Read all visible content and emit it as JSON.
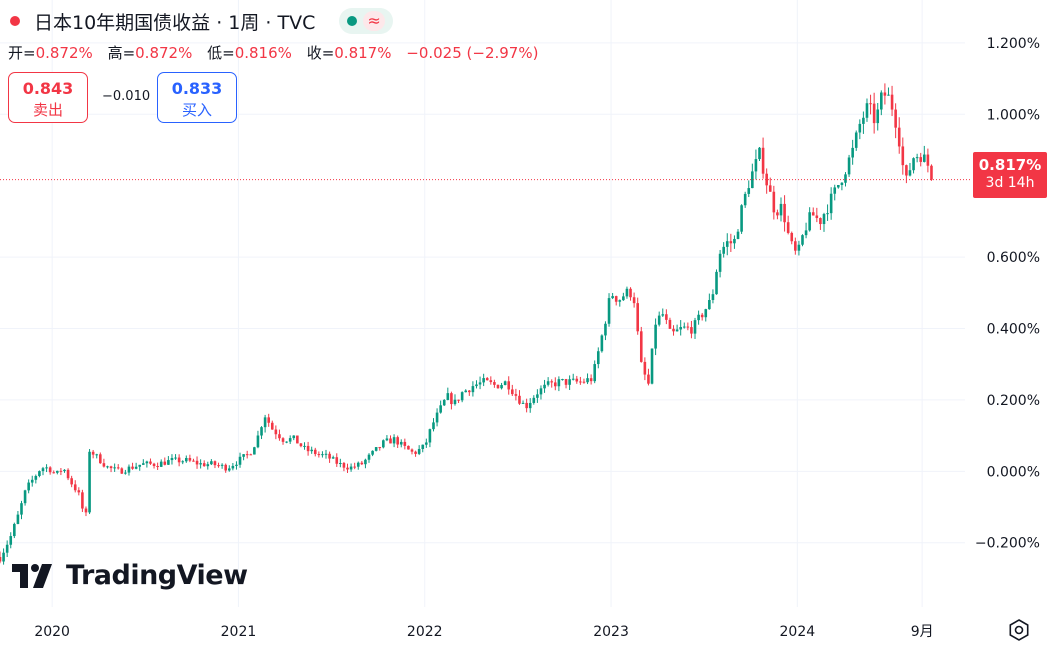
{
  "header": {
    "title": "日本10年期国债收益 · 1周 · TVC",
    "live_indicator_color": "#f23645",
    "pill_icons": [
      "market-open-dot-icon",
      "wave-icon"
    ],
    "pill_wave_glyph": "≈"
  },
  "ohlc": {
    "open_label": "开=",
    "open_value": "0.872%",
    "high_label": "高=",
    "high_value": "0.872%",
    "low_label": "低=",
    "low_value": "0.816%",
    "close_label": "收=",
    "close_value": "0.817%",
    "change": "−0.025 (−2.97%)"
  },
  "trade": {
    "sell_price": "0.843",
    "sell_label": "卖出",
    "spread": "−0.010",
    "buy_price": "0.833",
    "buy_label": "买入"
  },
  "last_price": {
    "value": "0.817%",
    "countdown": "3d 14h"
  },
  "branding": {
    "logo_text": "TradingView"
  },
  "colors": {
    "up": "#089981",
    "down": "#f23645",
    "accent_blue": "#2962ff",
    "text": "#131722",
    "grid": "#f0f3fa"
  },
  "chart_data": {
    "type": "candlestick",
    "title": "日本10年期国债收益 · 1周 · TVC",
    "x_axis": {
      "tick_labels": [
        "2020",
        "2021",
        "2022",
        "2023",
        "2024",
        "9月"
      ],
      "tick_values": [
        2020.0,
        2021.0,
        2022.0,
        2023.0,
        2024.0,
        2024.67
      ],
      "range": [
        2019.72,
        2024.9
      ]
    },
    "y_axis": {
      "tick_labels": [
        "1.200%",
        "1.000%",
        "0.600%",
        "0.400%",
        "0.200%",
        "0.000%",
        "−0.200%"
      ],
      "tick_values": [
        1.2,
        1.0,
        0.6,
        0.4,
        0.2,
        0.0,
        -0.2
      ],
      "range": [
        -0.38,
        1.32
      ],
      "side": "right"
    },
    "grid": true,
    "last_close": 0.817,
    "series": [
      {
        "points": [
          [
            2019.72,
            -0.24
          ],
          [
            2019.78,
            -0.18
          ],
          [
            2019.82,
            -0.12
          ],
          [
            2019.86,
            -0.05
          ],
          [
            2019.9,
            -0.02
          ],
          [
            2019.94,
            0.01
          ],
          [
            2019.98,
            0.01
          ],
          [
            2020.02,
            -0.01
          ],
          [
            2020.06,
            0.01
          ],
          [
            2020.1,
            -0.03
          ],
          [
            2020.14,
            -0.06
          ],
          [
            2020.18,
            -0.14
          ],
          [
            2020.2,
            0.06
          ],
          [
            2020.24,
            0.04
          ],
          [
            2020.3,
            0.01
          ],
          [
            2020.36,
            0.0
          ],
          [
            2020.42,
            0.01
          ],
          [
            2020.48,
            0.02
          ],
          [
            2020.56,
            0.02
          ],
          [
            2020.64,
            0.03
          ],
          [
            2020.72,
            0.03
          ],
          [
            2020.8,
            0.02
          ],
          [
            2020.86,
            0.02
          ],
          [
            2020.94,
            0.01
          ],
          [
            2021.0,
            0.03
          ],
          [
            2021.06,
            0.05
          ],
          [
            2021.1,
            0.09
          ],
          [
            2021.14,
            0.16
          ],
          [
            2021.18,
            0.12
          ],
          [
            2021.24,
            0.09
          ],
          [
            2021.3,
            0.09
          ],
          [
            2021.36,
            0.06
          ],
          [
            2021.42,
            0.05
          ],
          [
            2021.48,
            0.04
          ],
          [
            2021.54,
            0.02
          ],
          [
            2021.6,
            0.01
          ],
          [
            2021.66,
            0.02
          ],
          [
            2021.72,
            0.05
          ],
          [
            2021.78,
            0.08
          ],
          [
            2021.84,
            0.09
          ],
          [
            2021.88,
            0.07
          ],
          [
            2021.94,
            0.05
          ],
          [
            2022.0,
            0.07
          ],
          [
            2022.04,
            0.13
          ],
          [
            2022.08,
            0.17
          ],
          [
            2022.12,
            0.21
          ],
          [
            2022.16,
            0.19
          ],
          [
            2022.2,
            0.22
          ],
          [
            2022.26,
            0.24
          ],
          [
            2022.32,
            0.25
          ],
          [
            2022.38,
            0.24
          ],
          [
            2022.44,
            0.25
          ],
          [
            2022.48,
            0.22
          ],
          [
            2022.54,
            0.18
          ],
          [
            2022.6,
            0.22
          ],
          [
            2022.66,
            0.24
          ],
          [
            2022.72,
            0.25
          ],
          [
            2022.78,
            0.25
          ],
          [
            2022.84,
            0.25
          ],
          [
            2022.9,
            0.26
          ],
          [
            2022.96,
            0.4
          ],
          [
            2023.0,
            0.5
          ],
          [
            2023.04,
            0.48
          ],
          [
            2023.08,
            0.5
          ],
          [
            2023.12,
            0.5
          ],
          [
            2023.16,
            0.3
          ],
          [
            2023.2,
            0.24
          ],
          [
            2023.24,
            0.42
          ],
          [
            2023.28,
            0.44
          ],
          [
            2023.32,
            0.38
          ],
          [
            2023.38,
            0.4
          ],
          [
            2023.44,
            0.4
          ],
          [
            2023.5,
            0.45
          ],
          [
            2023.54,
            0.48
          ],
          [
            2023.58,
            0.61
          ],
          [
            2023.62,
            0.64
          ],
          [
            2023.66,
            0.64
          ],
          [
            2023.7,
            0.73
          ],
          [
            2023.74,
            0.81
          ],
          [
            2023.8,
            0.89
          ],
          [
            2023.84,
            0.8
          ],
          [
            2023.88,
            0.73
          ],
          [
            2023.92,
            0.74
          ],
          [
            2023.96,
            0.64
          ],
          [
            2024.0,
            0.6
          ],
          [
            2024.04,
            0.68
          ],
          [
            2024.08,
            0.72
          ],
          [
            2024.12,
            0.7
          ],
          [
            2024.16,
            0.74
          ],
          [
            2024.2,
            0.78
          ],
          [
            2024.26,
            0.85
          ],
          [
            2024.3,
            0.9
          ],
          [
            2024.34,
            0.98
          ],
          [
            2024.38,
            1.02
          ],
          [
            2024.42,
            0.98
          ],
          [
            2024.46,
            1.06
          ],
          [
            2024.5,
            1.04
          ],
          [
            2024.54,
            0.96
          ],
          [
            2024.58,
            0.8
          ],
          [
            2024.62,
            0.88
          ],
          [
            2024.66,
            0.89
          ],
          [
            2024.7,
            0.86
          ],
          [
            2024.72,
            0.817
          ]
        ]
      }
    ]
  }
}
